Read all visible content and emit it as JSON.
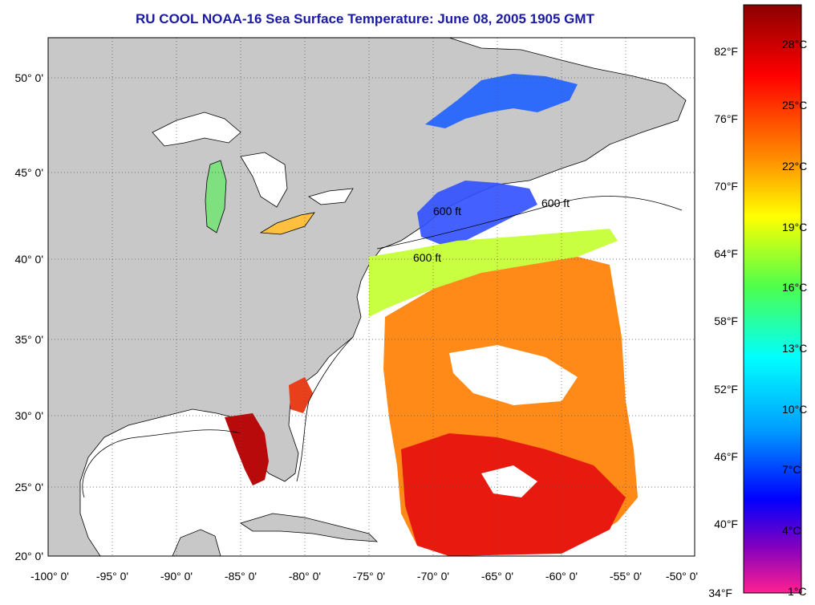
{
  "title": "RU COOL  NOAA-16  Sea Surface Temperature:  June 08, 2005 1905 GMT",
  "axes": {
    "lon_labels": [
      "-100° 0'",
      "-95° 0'",
      "-90° 0'",
      "-85° 0'",
      "-80° 0'",
      "-75° 0'",
      "-70° 0'",
      "-65° 0'",
      "-60° 0'",
      "-55° 0'",
      "-50° 0'"
    ],
    "lat_labels": [
      "50° 0'",
      "45° 0'",
      "40° 0'",
      "35° 0'",
      "30° 0'",
      "25° 0'",
      "20° 0'"
    ]
  },
  "isobath_label": "600 ft",
  "colorbar": {
    "fahrenheit_labels": [
      "82°F",
      "76°F",
      "70°F",
      "64°F",
      "58°F",
      "52°F",
      "46°F",
      "40°F",
      "34°F"
    ],
    "celsius_labels": [
      "28°C",
      "25°C",
      "22°C",
      "19°C",
      "16°C",
      "13°C",
      "10°C",
      "7°C",
      "4°C",
      "1°C"
    ]
  },
  "colors": {
    "land": "#c8c8c8",
    "no_data": "#ffffff",
    "title": "#1a1aa6"
  }
}
